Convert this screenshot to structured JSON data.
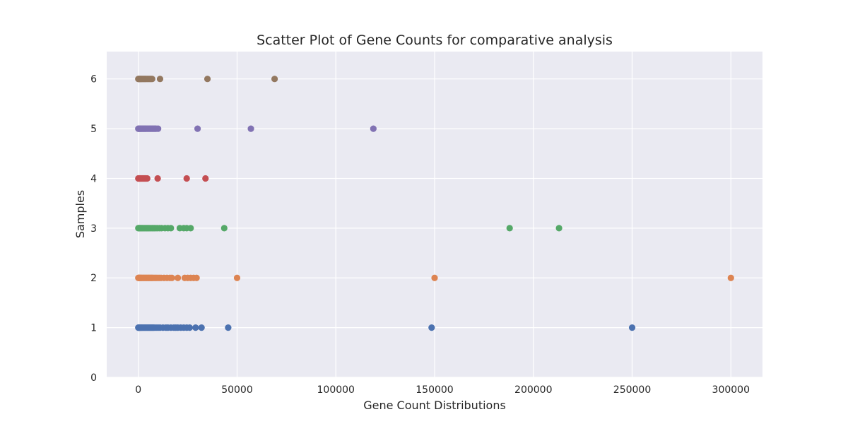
{
  "chart_data": {
    "type": "scatter",
    "title": "Scatter Plot of Gene Counts for comparative analysis",
    "xlabel": "Gene Count Distributions",
    "ylabel": "Samples",
    "xlim": [
      -16000,
      316000
    ],
    "ylim": [
      0,
      6.55
    ],
    "xticks": [
      0,
      50000,
      100000,
      150000,
      200000,
      250000,
      300000
    ],
    "yticks": [
      0,
      1,
      2,
      3,
      4,
      5,
      6
    ],
    "grid": true,
    "legend": "none",
    "background": "#eaeaf2",
    "series": [
      {
        "sample": 1,
        "color": "#4c72b0",
        "values": [
          0,
          150,
          350,
          600,
          900,
          1200,
          1600,
          2000,
          2500,
          3000,
          3500,
          4000,
          4500,
          5000,
          5500,
          6000,
          6500,
          7000,
          7500,
          8000,
          9000,
          10000,
          11000,
          12500,
          14000,
          15000,
          16500,
          18000,
          19000,
          20000,
          21500,
          23000,
          24500,
          26000,
          29000,
          32000,
          45500,
          148500,
          250000
        ]
      },
      {
        "sample": 2,
        "color": "#dd8452",
        "values": [
          0,
          200,
          400,
          700,
          1000,
          1400,
          1800,
          2300,
          2800,
          3300,
          3800,
          4300,
          4800,
          5300,
          5800,
          6300,
          6800,
          7300,
          8000,
          8800,
          9500,
          10500,
          11500,
          13000,
          14500,
          16000,
          17000,
          20000,
          23500,
          25000,
          26500,
          28000,
          29500,
          50000,
          150000,
          300000
        ]
      },
      {
        "sample": 3,
        "color": "#55a868",
        "values": [
          0,
          200,
          400,
          700,
          1000,
          1400,
          1800,
          2200,
          2700,
          3200,
          3700,
          4200,
          4700,
          5200,
          5800,
          6400,
          7000,
          7600,
          8200,
          9000,
          9800,
          10800,
          11800,
          13500,
          15000,
          16500,
          21000,
          23000,
          24500,
          26500,
          43500,
          188000,
          213000
        ]
      },
      {
        "sample": 4,
        "color": "#c44e52",
        "values": [
          0,
          200,
          400,
          700,
          1000,
          1300,
          1600,
          2000,
          2400,
          2800,
          3200,
          3600,
          4000,
          4500,
          9800,
          24500,
          34000
        ]
      },
      {
        "sample": 5,
        "color": "#8172b3",
        "values": [
          0,
          200,
          400,
          700,
          1000,
          1300,
          1600,
          2000,
          2400,
          2800,
          3200,
          3600,
          4000,
          4500,
          5000,
          5500,
          6000,
          6500,
          7000,
          7500,
          8000,
          8500,
          9000,
          10000,
          30000,
          57000,
          119000
        ]
      },
      {
        "sample": 6,
        "color": "#937860",
        "values": [
          0,
          200,
          400,
          700,
          1000,
          1300,
          1600,
          2000,
          2400,
          2800,
          3200,
          3600,
          4000,
          4500,
          5000,
          5500,
          6000,
          6500,
          7000,
          11000,
          35000,
          69000
        ]
      }
    ]
  }
}
